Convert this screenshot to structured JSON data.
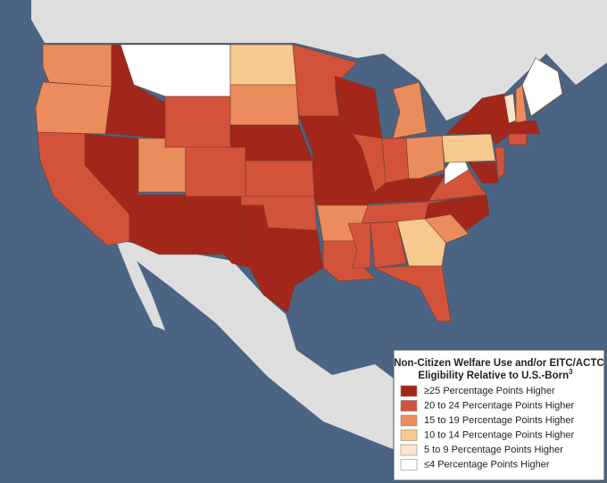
{
  "legend": {
    "title_lines": [
      "Non-Citizen Welfare Use and/or EITC/ACTC",
      "Eligibility Relative to U.S.-Born"
    ],
    "title_superscript": "3",
    "items": [
      {
        "label": "≥25 Percentage Points Higher",
        "color": "#a3261a"
      },
      {
        "label": "20 to 24 Percentage Points Higher",
        "color": "#d3533a"
      },
      {
        "label": "15 to 19 Percentage Points Higher",
        "color": "#ea8c5c"
      },
      {
        "label": "10 to 14 Percentage Points Higher",
        "color": "#f6c98e"
      },
      {
        "label": "5 to 9 Percentage Points Higher",
        "color": "#fbe6cd"
      },
      {
        "label": "≤4 Percentage Points Higher",
        "color": "#ffffff"
      }
    ]
  }
}
